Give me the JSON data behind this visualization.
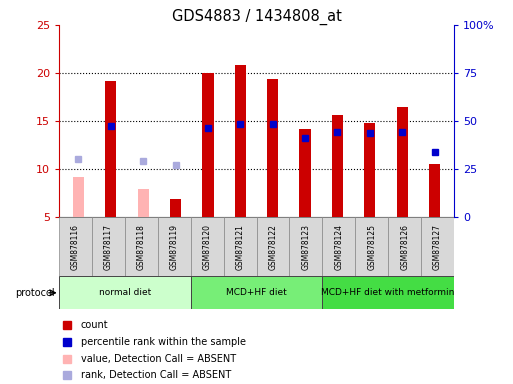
{
  "title": "GDS4883 / 1434808_at",
  "samples": [
    "GSM878116",
    "GSM878117",
    "GSM878118",
    "GSM878119",
    "GSM878120",
    "GSM878121",
    "GSM878122",
    "GSM878123",
    "GSM878124",
    "GSM878125",
    "GSM878126",
    "GSM878127"
  ],
  "count_values": [
    9.2,
    19.2,
    7.9,
    6.9,
    20.0,
    20.8,
    19.4,
    14.2,
    15.6,
    14.8,
    16.5,
    10.5
  ],
  "count_absent": [
    true,
    false,
    true,
    false,
    false,
    false,
    false,
    false,
    false,
    false,
    false,
    false
  ],
  "percentile_values_left": [
    11.0,
    14.5,
    10.8,
    10.4,
    14.3,
    14.7,
    14.7,
    13.2,
    13.8,
    13.7,
    13.8,
    11.8
  ],
  "percentile_absent": [
    true,
    false,
    true,
    true,
    false,
    false,
    false,
    false,
    false,
    false,
    false,
    false
  ],
  "ylim_left": [
    5,
    25
  ],
  "ylim_right": [
    0,
    100
  ],
  "yticks_left": [
    5,
    10,
    15,
    20,
    25
  ],
  "ytick_labels_left": [
    "5",
    "10",
    "15",
    "20",
    "25"
  ],
  "yticks_right": [
    0,
    25,
    50,
    75,
    100
  ],
  "ytick_labels_right": [
    "0",
    "25",
    "50",
    "75",
    "100%"
  ],
  "color_count": "#cc0000",
  "color_count_absent": "#ffb3b3",
  "color_percentile": "#0000cc",
  "color_percentile_absent": "#aaaadd",
  "protocol_groups": [
    {
      "label": "normal diet",
      "start": 0,
      "end": 3,
      "color": "#ccffcc"
    },
    {
      "label": "MCD+HF diet",
      "start": 4,
      "end": 7,
      "color": "#77ee77"
    },
    {
      "label": "MCD+HF diet with metformin",
      "start": 8,
      "end": 11,
      "color": "#44dd44"
    }
  ],
  "legend_items": [
    {
      "label": "count",
      "color": "#cc0000"
    },
    {
      "label": "percentile rank within the sample",
      "color": "#0000cc"
    },
    {
      "label": "value, Detection Call = ABSENT",
      "color": "#ffb3b3"
    },
    {
      "label": "rank, Detection Call = ABSENT",
      "color": "#aaaadd"
    }
  ],
  "bar_bottom": 5,
  "bar_width": 0.35
}
